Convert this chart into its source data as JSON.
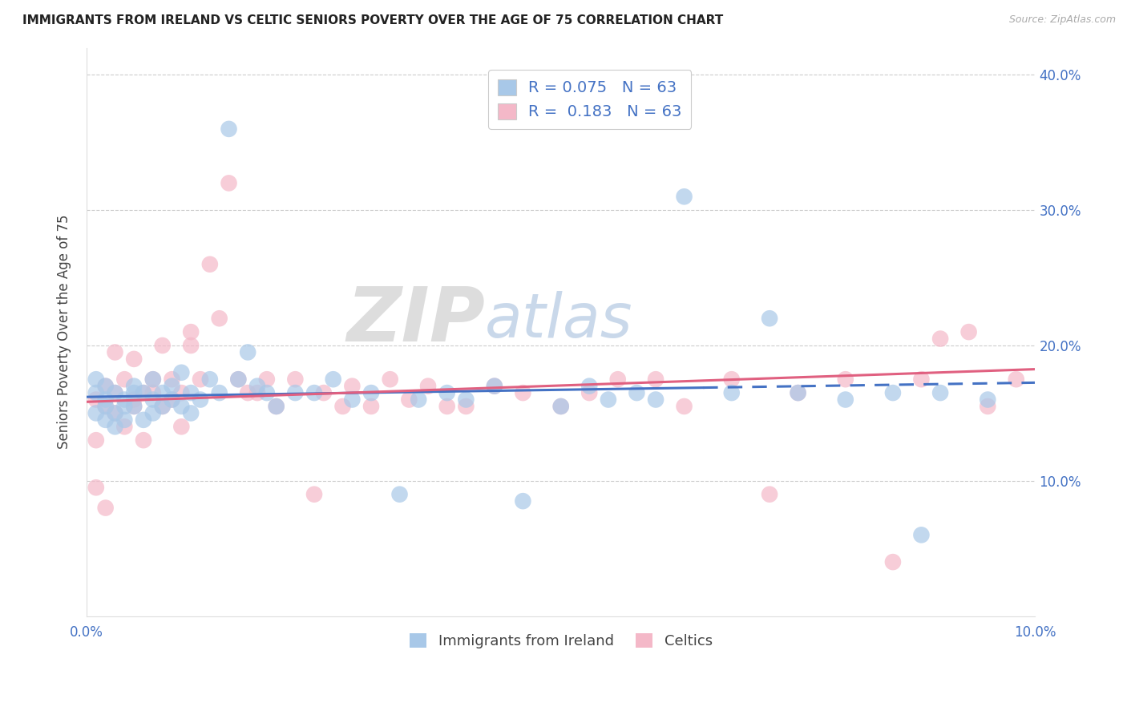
{
  "title": "IMMIGRANTS FROM IRELAND VS CELTIC SENIORS POVERTY OVER THE AGE OF 75 CORRELATION CHART",
  "source": "Source: ZipAtlas.com",
  "ylabel": "Seniors Poverty Over the Age of 75",
  "xlim": [
    0.0,
    0.1
  ],
  "ylim": [
    0.0,
    0.42
  ],
  "bottom_legend": [
    "Immigrants from Ireland",
    "Celtics"
  ],
  "R_ireland": 0.075,
  "R_celtics": 0.183,
  "ireland_color": "#a8c8e8",
  "celtics_color": "#f4b8c8",
  "trendline_ireland_color": "#4472c4",
  "trendline_celtics_color": "#e06080",
  "watermark_zip": "ZIP",
  "watermark_atlas": "atlas",
  "ireland_x": [
    0.001,
    0.001,
    0.001,
    0.002,
    0.002,
    0.002,
    0.002,
    0.003,
    0.003,
    0.003,
    0.004,
    0.004,
    0.004,
    0.005,
    0.005,
    0.005,
    0.006,
    0.006,
    0.007,
    0.007,
    0.007,
    0.008,
    0.008,
    0.009,
    0.009,
    0.01,
    0.01,
    0.011,
    0.011,
    0.012,
    0.013,
    0.014,
    0.015,
    0.016,
    0.017,
    0.018,
    0.019,
    0.02,
    0.022,
    0.024,
    0.026,
    0.028,
    0.03,
    0.033,
    0.035,
    0.038,
    0.04,
    0.043,
    0.046,
    0.05,
    0.053,
    0.055,
    0.058,
    0.06,
    0.063,
    0.068,
    0.072,
    0.075,
    0.08,
    0.085,
    0.088,
    0.09,
    0.095
  ],
  "ireland_y": [
    0.165,
    0.15,
    0.175,
    0.16,
    0.155,
    0.145,
    0.17,
    0.15,
    0.165,
    0.14,
    0.16,
    0.155,
    0.145,
    0.155,
    0.165,
    0.17,
    0.145,
    0.165,
    0.16,
    0.175,
    0.15,
    0.155,
    0.165,
    0.16,
    0.17,
    0.155,
    0.18,
    0.165,
    0.15,
    0.16,
    0.175,
    0.165,
    0.36,
    0.175,
    0.195,
    0.17,
    0.165,
    0.155,
    0.165,
    0.165,
    0.175,
    0.16,
    0.165,
    0.09,
    0.16,
    0.165,
    0.16,
    0.17,
    0.085,
    0.155,
    0.17,
    0.16,
    0.165,
    0.16,
    0.31,
    0.165,
    0.22,
    0.165,
    0.16,
    0.165,
    0.06,
    0.165,
    0.16
  ],
  "celtics_x": [
    0.001,
    0.001,
    0.001,
    0.002,
    0.002,
    0.002,
    0.003,
    0.003,
    0.003,
    0.004,
    0.004,
    0.005,
    0.005,
    0.005,
    0.006,
    0.006,
    0.007,
    0.007,
    0.008,
    0.008,
    0.009,
    0.009,
    0.01,
    0.01,
    0.011,
    0.011,
    0.012,
    0.013,
    0.014,
    0.015,
    0.016,
    0.017,
    0.018,
    0.019,
    0.02,
    0.022,
    0.024,
    0.025,
    0.027,
    0.028,
    0.03,
    0.032,
    0.034,
    0.036,
    0.038,
    0.04,
    0.043,
    0.046,
    0.05,
    0.053,
    0.056,
    0.06,
    0.063,
    0.068,
    0.072,
    0.075,
    0.08,
    0.085,
    0.088,
    0.09,
    0.093,
    0.095,
    0.098
  ],
  "celtics_y": [
    0.13,
    0.095,
    0.16,
    0.155,
    0.08,
    0.17,
    0.165,
    0.15,
    0.195,
    0.14,
    0.175,
    0.16,
    0.19,
    0.155,
    0.165,
    0.13,
    0.165,
    0.175,
    0.155,
    0.2,
    0.16,
    0.175,
    0.14,
    0.165,
    0.21,
    0.2,
    0.175,
    0.26,
    0.22,
    0.32,
    0.175,
    0.165,
    0.165,
    0.175,
    0.155,
    0.175,
    0.09,
    0.165,
    0.155,
    0.17,
    0.155,
    0.175,
    0.16,
    0.17,
    0.155,
    0.155,
    0.17,
    0.165,
    0.155,
    0.165,
    0.175,
    0.175,
    0.155,
    0.175,
    0.09,
    0.165,
    0.175,
    0.04,
    0.175,
    0.205,
    0.21,
    0.155,
    0.175
  ]
}
